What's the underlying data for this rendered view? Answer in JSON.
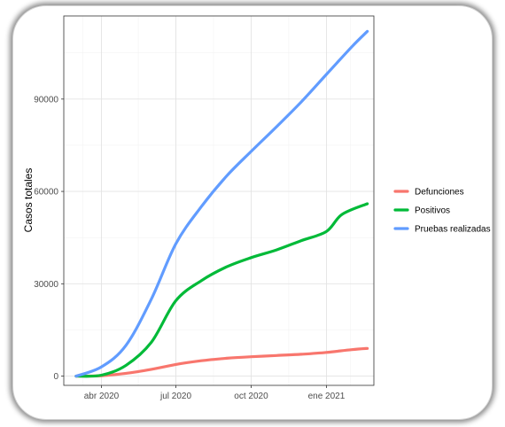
{
  "chart_data": {
    "type": "line",
    "title": "",
    "xlabel": "",
    "ylabel": "Casos totales",
    "x_ticks": [
      {
        "date": "2020-04-01",
        "label": "abr 2020"
      },
      {
        "date": "2020-07-01",
        "label": "jul 2020"
      },
      {
        "date": "2020-10-01",
        "label": "oct 2020"
      },
      {
        "date": "2021-01-01",
        "label": "ene 2021"
      }
    ],
    "y_ticks": [
      0,
      30000,
      60000,
      90000
    ],
    "xlim": [
      "2020-02-15",
      "2021-02-28"
    ],
    "ylim": [
      -3000,
      117000
    ],
    "grid": true,
    "legend_position": "right",
    "series": [
      {
        "name": "Defunciones",
        "color": "#F8766D",
        "points": [
          [
            "2020-03-01",
            0
          ],
          [
            "2020-04-01",
            150
          ],
          [
            "2020-05-01",
            900
          ],
          [
            "2020-06-01",
            2200
          ],
          [
            "2020-07-01",
            3800
          ],
          [
            "2020-08-01",
            5000
          ],
          [
            "2020-09-01",
            5800
          ],
          [
            "2020-10-01",
            6300
          ],
          [
            "2020-11-01",
            6700
          ],
          [
            "2020-12-01",
            7100
          ],
          [
            "2021-01-01",
            7700
          ],
          [
            "2021-02-01",
            8600
          ],
          [
            "2021-02-20",
            9000
          ]
        ]
      },
      {
        "name": "Positivos",
        "color": "#00BA38",
        "points": [
          [
            "2020-03-01",
            0
          ],
          [
            "2020-04-01",
            300
          ],
          [
            "2020-05-01",
            3500
          ],
          [
            "2020-06-01",
            11000
          ],
          [
            "2020-07-01",
            24500
          ],
          [
            "2020-08-01",
            31000
          ],
          [
            "2020-09-01",
            35500
          ],
          [
            "2020-10-01",
            38500
          ],
          [
            "2020-11-01",
            41000
          ],
          [
            "2020-12-01",
            44000
          ],
          [
            "2021-01-01",
            47000
          ],
          [
            "2021-01-20",
            52500
          ],
          [
            "2021-02-20",
            56000
          ]
        ]
      },
      {
        "name": "Pruebas realizadas",
        "color": "#619CFF",
        "points": [
          [
            "2020-03-01",
            0
          ],
          [
            "2020-04-01",
            3000
          ],
          [
            "2020-05-01",
            10000
          ],
          [
            "2020-06-01",
            25000
          ],
          [
            "2020-07-01",
            43000
          ],
          [
            "2020-08-01",
            55000
          ],
          [
            "2020-09-01",
            65000
          ],
          [
            "2020-10-01",
            73000
          ],
          [
            "2020-11-01",
            81000
          ],
          [
            "2020-12-01",
            89000
          ],
          [
            "2021-01-01",
            98000
          ],
          [
            "2021-02-01",
            107000
          ],
          [
            "2021-02-20",
            112000
          ]
        ]
      }
    ]
  }
}
